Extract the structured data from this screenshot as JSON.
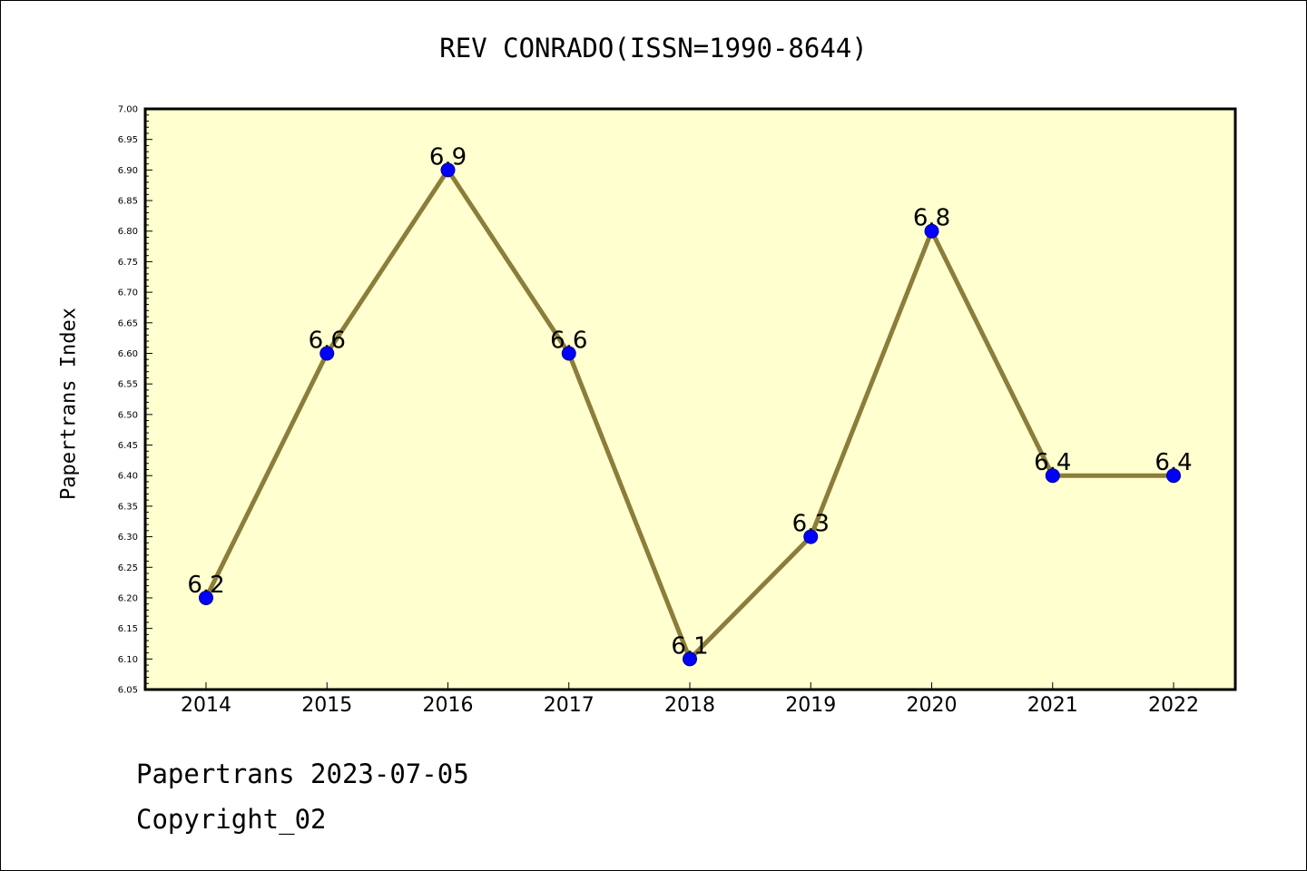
{
  "chart_data": {
    "type": "line",
    "title": "REV CONRADO(ISSN=1990-8644)",
    "xlabel": "",
    "ylabel": "Papertrans Index",
    "categories": [
      "2014",
      "2015",
      "2016",
      "2017",
      "2018",
      "2019",
      "2020",
      "2021",
      "2022"
    ],
    "series": [
      {
        "values": [
          6.2,
          6.6,
          6.9,
          6.6,
          6.1,
          6.3,
          6.8,
          6.4,
          6.4
        ],
        "data_labels": [
          "6.2",
          "6.6",
          "6.9",
          "6.6",
          "6.1",
          "6.3",
          "6.8",
          "6.4",
          "6.4"
        ]
      }
    ],
    "ylim": [
      6.05,
      7.0
    ],
    "yticks": [
      "6.05",
      "6.10",
      "6.15",
      "6.20",
      "6.25",
      "6.30",
      "6.35",
      "6.40",
      "6.45",
      "6.50",
      "6.55",
      "6.60",
      "6.65",
      "6.70",
      "6.75",
      "6.80",
      "6.85",
      "6.90",
      "6.95",
      "7.00"
    ],
    "grid": false,
    "legend": "none",
    "colors": {
      "plot_background": "#ffffd0",
      "line": "#8b7d3a",
      "marker": "#0000ff",
      "marker_edge": "#00008b"
    }
  },
  "footer": {
    "date_line": "Papertrans 2023-07-05",
    "copyright_line": "Copyright_02"
  }
}
